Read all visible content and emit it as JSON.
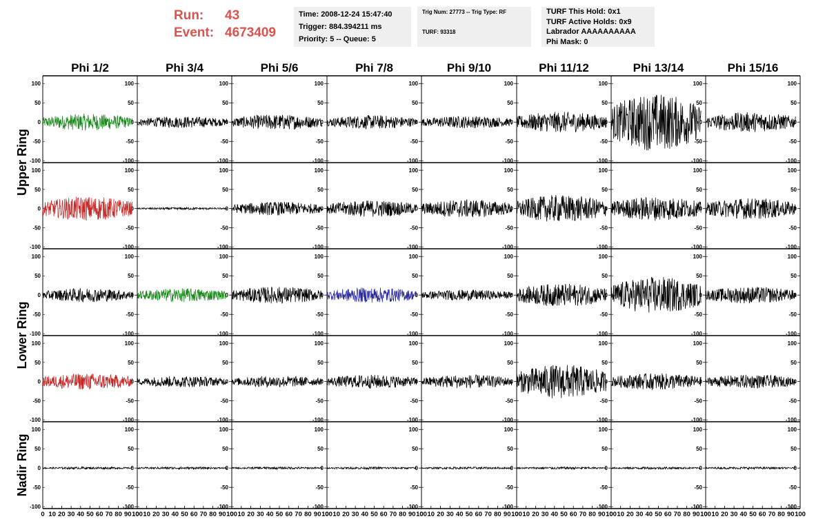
{
  "header": {
    "run_label": "Run:",
    "run_value": "43",
    "event_label": "Event:",
    "event_value": "4673409",
    "time_line": "Time: 2008-12-24 15:47:40",
    "trigger_line": "Trigger: 884.394211 ms",
    "priority_line": "Priority: 5 -- Queue: 5",
    "trig_line": "Trig Num: 27773 -- Trig Type: RF",
    "turf_line": "TURF: 93318",
    "turf_hold_line": "TURF This Hold: 0x1",
    "turf_active_line": "TURF Active Holds: 0x9",
    "labrador_line": "Labrador AAAAAAAAAA",
    "phi_mask_line": "Phi Mask: 0"
  },
  "colors": {
    "run_event": "#d9534f",
    "info_bg": "#efefef",
    "trace_default": "#000000",
    "trace_green": "#1a8a1a",
    "trace_red": "#c82828",
    "trace_blue": "#2a2aa0"
  },
  "chart_data": {
    "type": "line",
    "columns": [
      "Phi 1/2",
      "Phi 3/4",
      "Phi 5/6",
      "Phi 7/8",
      "Phi 9/10",
      "Phi 11/12",
      "Phi 13/14",
      "Phi 15/16"
    ],
    "rows": [
      {
        "ring": "Upper Ring",
        "amplitudes": [
          22,
          15,
          20,
          18,
          16,
          27,
          75,
          26
        ],
        "colors": [
          "green",
          "",
          "",
          "",
          "",
          "",
          "",
          ""
        ]
      },
      {
        "ring": "Upper Ring",
        "amplitudes": [
          32,
          3,
          18,
          22,
          24,
          36,
          32,
          28
        ],
        "colors": [
          "red",
          "",
          "",
          "",
          "",
          "",
          "",
          ""
        ]
      },
      {
        "ring": "Lower Ring",
        "amplitudes": [
          18,
          18,
          22,
          20,
          14,
          30,
          48,
          22
        ],
        "colors": [
          "",
          "green",
          "",
          "blue",
          "",
          "",
          "",
          ""
        ]
      },
      {
        "ring": "Lower Ring",
        "amplitudes": [
          22,
          15,
          15,
          18,
          18,
          45,
          22,
          18
        ],
        "colors": [
          "red",
          "",
          "",
          "",
          "",
          "",
          "",
          ""
        ]
      },
      {
        "ring": "Nadir Ring",
        "amplitudes": [
          3,
          3,
          3,
          3,
          3,
          3,
          3,
          3
        ],
        "colors": [
          "",
          "",
          "",
          "",
          "",
          "",
          "",
          ""
        ]
      }
    ],
    "ring_labels": [
      "Upper Ring",
      "Lower Ring",
      "Nadir Ring"
    ],
    "y_ticks": [
      100,
      50,
      0,
      -50,
      -100
    ],
    "ylim": [
      -105,
      120
    ],
    "x_ticks": [
      0,
      10,
      20,
      30,
      40,
      50,
      60,
      70,
      80,
      90,
      100
    ],
    "xlim": [
      0,
      100
    ],
    "grid": false
  }
}
